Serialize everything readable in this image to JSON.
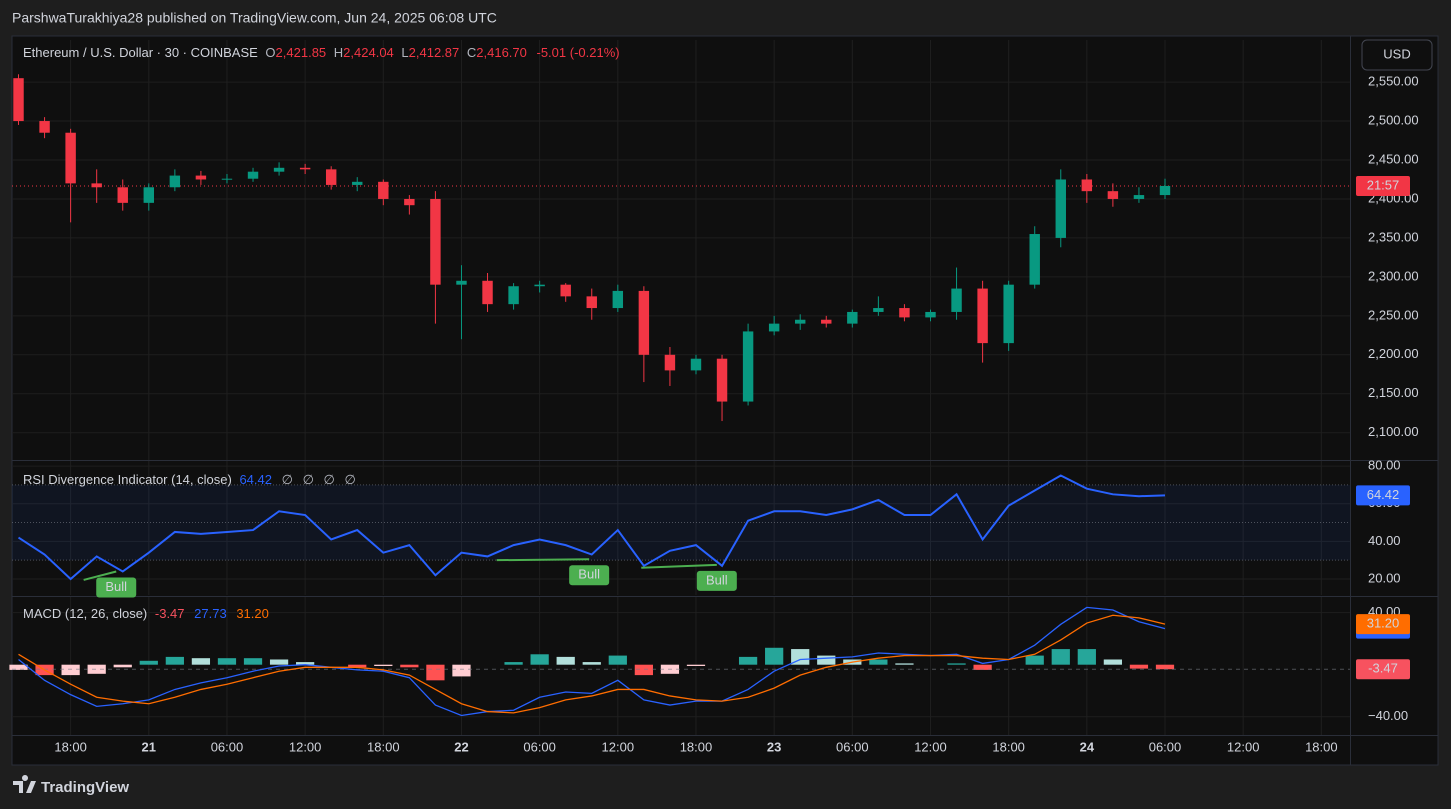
{
  "header": {
    "text": "ParshwaTurakhiya28 published on TradingView.com, Jun 24, 2025 06:08 UTC"
  },
  "footer": {
    "brand": "TradingView"
  },
  "currency_button": "USD",
  "chart_data": [
    {
      "type": "candlestick",
      "title": "Ethereum / U.S. Dollar · 30 · COINBASE",
      "ohlc": [
        {
          "key": "O",
          "value": "2,421.85"
        },
        {
          "key": "H",
          "value": "2,424.04"
        },
        {
          "key": "L",
          "value": "2,412.87"
        },
        {
          "key": "C",
          "value": "2,416.70"
        }
      ],
      "change": "-5.01 (-0.21%)",
      "up_color": "#089981",
      "down_color": "#f23645",
      "x": [
        14,
        16,
        18,
        20,
        22,
        24,
        26,
        28,
        30,
        32,
        34,
        36,
        38,
        40,
        42,
        44,
        46,
        48,
        50,
        52,
        54,
        56,
        58,
        60,
        62,
        64,
        66,
        68,
        70,
        72,
        74,
        76,
        78,
        80,
        82,
        84,
        86,
        88,
        90,
        92,
        94,
        96,
        98,
        100,
        102
      ],
      "open": [
        2555,
        2500,
        2485,
        2420,
        2415,
        2395,
        2415,
        2430,
        2425,
        2426,
        2435,
        2440,
        2438,
        2418,
        2422,
        2400,
        2400,
        2290,
        2295,
        2265,
        2288,
        2290,
        2275,
        2260,
        2282,
        2200,
        2180,
        2195,
        2140,
        2230,
        2240,
        2245,
        2240,
        2255,
        2260,
        2248,
        2255,
        2285,
        2215,
        2290,
        2350,
        2425,
        2410,
        2400,
        2405
      ],
      "high": [
        2560,
        2505,
        2490,
        2438,
        2425,
        2420,
        2438,
        2436,
        2432,
        2440,
        2447,
        2445,
        2442,
        2428,
        2425,
        2405,
        2410,
        2315,
        2305,
        2292,
        2295,
        2292,
        2285,
        2290,
        2288,
        2210,
        2200,
        2200,
        2240,
        2250,
        2252,
        2250,
        2258,
        2275,
        2265,
        2258,
        2312,
        2295,
        2295,
        2365,
        2438,
        2432,
        2420,
        2415,
        2426
      ],
      "low": [
        2495,
        2478,
        2370,
        2395,
        2385,
        2385,
        2410,
        2418,
        2420,
        2422,
        2430,
        2432,
        2412,
        2410,
        2392,
        2380,
        2240,
        2220,
        2255,
        2258,
        2280,
        2268,
        2245,
        2255,
        2165,
        2160,
        2175,
        2115,
        2135,
        2225,
        2232,
        2235,
        2235,
        2250,
        2243,
        2243,
        2245,
        2190,
        2205,
        2285,
        2338,
        2395,
        2390,
        2395,
        2400
      ],
      "close": [
        2500,
        2485,
        2420,
        2415,
        2395,
        2415,
        2430,
        2425,
        2426,
        2435,
        2440,
        2438,
        2418,
        2422,
        2400,
        2392,
        2290,
        2295,
        2265,
        2288,
        2290,
        2275,
        2260,
        2282,
        2200,
        2180,
        2195,
        2140,
        2230,
        2240,
        2245,
        2240,
        2255,
        2260,
        2248,
        2255,
        2285,
        2215,
        2290,
        2355,
        2425,
        2410,
        2400,
        2405,
        2416.7
      ],
      "last_price": 2416.7,
      "countdown_label": "21:57",
      "xlim": [
        13.5,
        116.2
      ],
      "xticks": [
        {
          "value": 18,
          "label": "18:00"
        },
        {
          "value": 24,
          "label": "21"
        },
        {
          "value": 30,
          "label": "06:00"
        },
        {
          "value": 36,
          "label": "12:00"
        },
        {
          "value": 42,
          "label": "18:00"
        },
        {
          "value": 48,
          "label": "22"
        },
        {
          "value": 54,
          "label": "06:00"
        },
        {
          "value": 60,
          "label": "12:00"
        },
        {
          "value": 66,
          "label": "18:00"
        },
        {
          "value": 72,
          "label": "23"
        },
        {
          "value": 78,
          "label": "06:00"
        },
        {
          "value": 84,
          "label": "12:00"
        },
        {
          "value": 90,
          "label": "18:00"
        },
        {
          "value": 96,
          "label": "24"
        },
        {
          "value": 102,
          "label": "06:00"
        },
        {
          "value": 108,
          "label": "12:00"
        },
        {
          "value": 114,
          "label": "18:00"
        }
      ],
      "ylim": [
        2065,
        2604
      ],
      "yticks": [
        {
          "value": 2100,
          "label": "2,100.00"
        },
        {
          "value": 2150,
          "label": "2,150.00"
        },
        {
          "value": 2200,
          "label": "2,200.00"
        },
        {
          "value": 2250,
          "label": "2,250.00"
        },
        {
          "value": 2300,
          "label": "2,300.00"
        },
        {
          "value": 2350,
          "label": "2,350.00"
        },
        {
          "value": 2400,
          "label": "2,400.00"
        },
        {
          "value": 2450,
          "label": "2,450.00"
        },
        {
          "value": 2500,
          "label": "2,500.00"
        },
        {
          "value": 2550,
          "label": "2,550.00"
        }
      ],
      "grid": true
    },
    {
      "type": "line",
      "title": "RSI Divergence Indicator (14, close)",
      "legend_extra": [
        "∅",
        "∅",
        "∅",
        "∅"
      ],
      "x": [
        14,
        16,
        18,
        20,
        22,
        24,
        26,
        28,
        30,
        32,
        34,
        36,
        38,
        40,
        42,
        44,
        46,
        48,
        50,
        52,
        54,
        56,
        58,
        60,
        62,
        64,
        66,
        68,
        70,
        72,
        74,
        76,
        78,
        80,
        82,
        84,
        86,
        88,
        90,
        92,
        94,
        96,
        98,
        100,
        102
      ],
      "series": [
        {
          "name": "RSI",
          "color": "#2962ff",
          "values": [
            42,
            33,
            20,
            32,
            24,
            34,
            45,
            44,
            45,
            46,
            56,
            54,
            41,
            46,
            34,
            38,
            22,
            34,
            32,
            38,
            41,
            38,
            33,
            46,
            27,
            35,
            38,
            27,
            51,
            56,
            56,
            54,
            57,
            62,
            54,
            54,
            65,
            41,
            59,
            67,
            75,
            68,
            65,
            64,
            64.42
          ]
        }
      ],
      "band": [
        30,
        70
      ],
      "band_color": "#2962ff",
      "midline": 50,
      "divergences": [
        {
          "label": "Bull",
          "color": "#4caf50",
          "x": [
            19,
            21.5
          ],
          "y": [
            19.5,
            24
          ]
        },
        {
          "label": "Bull",
          "color": "#4caf50",
          "x": [
            50.7,
            57.8
          ],
          "y": [
            30,
            30.5
          ]
        },
        {
          "label": "Bull",
          "color": "#4caf50",
          "x": [
            61.8,
            67.6
          ],
          "y": [
            26,
            27.5
          ]
        }
      ],
      "ylim": [
        11.5,
        82.7
      ],
      "yticks": [
        {
          "value": 20,
          "label": "20.00"
        },
        {
          "value": 40,
          "label": "40.00"
        },
        {
          "value": 60,
          "label": "60.00"
        },
        {
          "value": 80,
          "label": "80.00"
        }
      ],
      "grid": true
    },
    {
      "type": "combo",
      "title": "MACD (12, 26, close)",
      "x": [
        14,
        16,
        18,
        20,
        22,
        24,
        26,
        28,
        30,
        32,
        34,
        36,
        38,
        40,
        42,
        44,
        46,
        48,
        50,
        52,
        54,
        56,
        58,
        60,
        62,
        64,
        66,
        68,
        70,
        72,
        74,
        76,
        78,
        80,
        82,
        84,
        86,
        88,
        90,
        92,
        94,
        96,
        98,
        100,
        102
      ],
      "series": [
        {
          "name": "Histogram",
          "kind": "bar",
          "colors": {
            "up_rising": "#26a69a",
            "up_falling": "#b2dfdb",
            "down_rising": "#ffcdd2",
            "down_falling": "#ff5252"
          },
          "color": "#f7525f",
          "values": [
            -4,
            -8,
            -8,
            -7,
            -2,
            3,
            6,
            5,
            5,
            5,
            4,
            2,
            0,
            -2,
            -1,
            -2,
            -12,
            -9,
            0,
            2,
            8,
            6,
            2,
            7,
            -8,
            -7,
            -1,
            0,
            6,
            13,
            12,
            7,
            4,
            4,
            1,
            0,
            1,
            -4,
            0,
            7,
            12,
            12,
            4,
            -3,
            -3.47
          ]
        },
        {
          "name": "MACD",
          "kind": "line",
          "color": "#2962ff",
          "values": [
            4,
            -12,
            -23,
            -32,
            -30,
            -27,
            -19,
            -14,
            -10,
            -5,
            -1,
            0,
            -2,
            -4,
            -5,
            -10,
            -31,
            -39,
            -36,
            -35,
            -25,
            -21,
            -22,
            -12,
            -27,
            -31,
            -28,
            -28,
            -19,
            -5,
            4,
            5,
            6,
            9,
            8,
            7,
            8,
            1,
            4,
            15,
            31,
            44,
            42,
            33,
            27.73
          ]
        },
        {
          "name": "Signal",
          "kind": "line",
          "color": "#ff6d00",
          "values": [
            8,
            -4,
            -15,
            -25,
            -28,
            -30,
            -25,
            -19,
            -15,
            -10,
            -5,
            -2,
            -2,
            -2,
            -4,
            -8,
            -19,
            -30,
            -36,
            -37,
            -33,
            -27,
            -24,
            -19,
            -19,
            -24,
            -27,
            -28,
            -25,
            -18,
            -8,
            -2,
            2,
            5,
            7,
            7,
            7,
            5,
            4,
            8,
            19,
            32,
            38,
            36,
            31.2
          ],
          "value_labels": {
            "44": "31.20"
          }
        }
      ],
      "ylim": [
        -54,
        52
      ],
      "yticks": [
        {
          "value": -40,
          "label": "−40.00"
        },
        {
          "value": 40,
          "label": "40.00"
        }
      ],
      "grid": true
    }
  ]
}
